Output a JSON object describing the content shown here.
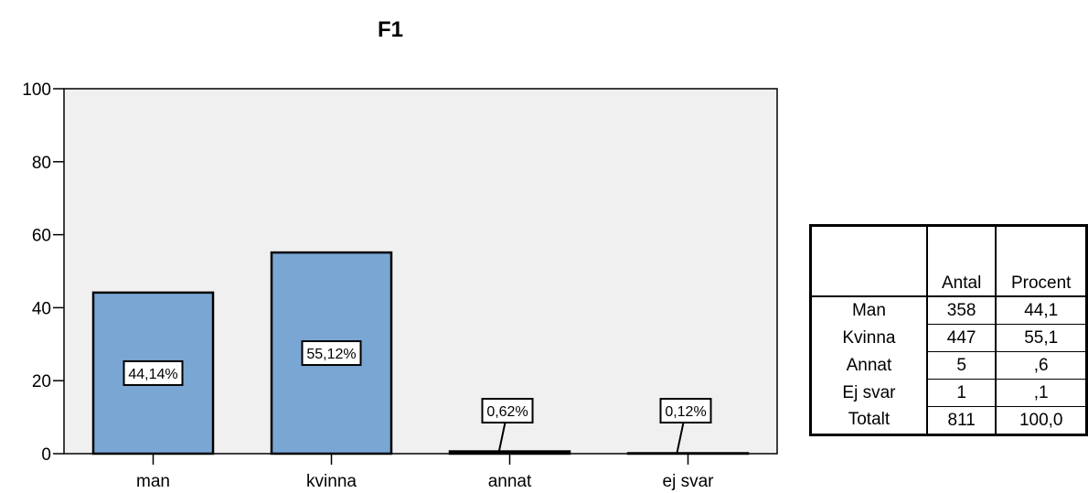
{
  "chart_data": {
    "type": "bar",
    "title": "F1",
    "categories": [
      "man",
      "kvinna",
      "annat",
      "ej svar"
    ],
    "values": [
      44.14,
      55.12,
      0.62,
      0.12
    ],
    "value_labels": [
      "44,14%",
      "55,12%",
      "0,62%",
      "0,12%"
    ],
    "ylim": [
      0,
      100
    ],
    "yticks": [
      0,
      20,
      40,
      60,
      80,
      100
    ],
    "xlabel": "",
    "ylabel": "",
    "grid": false,
    "colors": {
      "bar": "#7aa6d4",
      "plot_bg": "#f0f0f0",
      "edge": "#000000"
    }
  },
  "table": {
    "headers": [
      "",
      "Antal",
      "Procent"
    ],
    "rows": [
      {
        "label": "Man",
        "antal": "358",
        "procent": "44,1"
      },
      {
        "label": "Kvinna",
        "antal": "447",
        "procent": "55,1"
      },
      {
        "label": "Annat",
        "antal": "5",
        "procent": ",6"
      },
      {
        "label": "Ej svar",
        "antal": "1",
        "procent": ",1"
      },
      {
        "label": "Totalt",
        "antal": "811",
        "procent": "100,0"
      }
    ]
  }
}
